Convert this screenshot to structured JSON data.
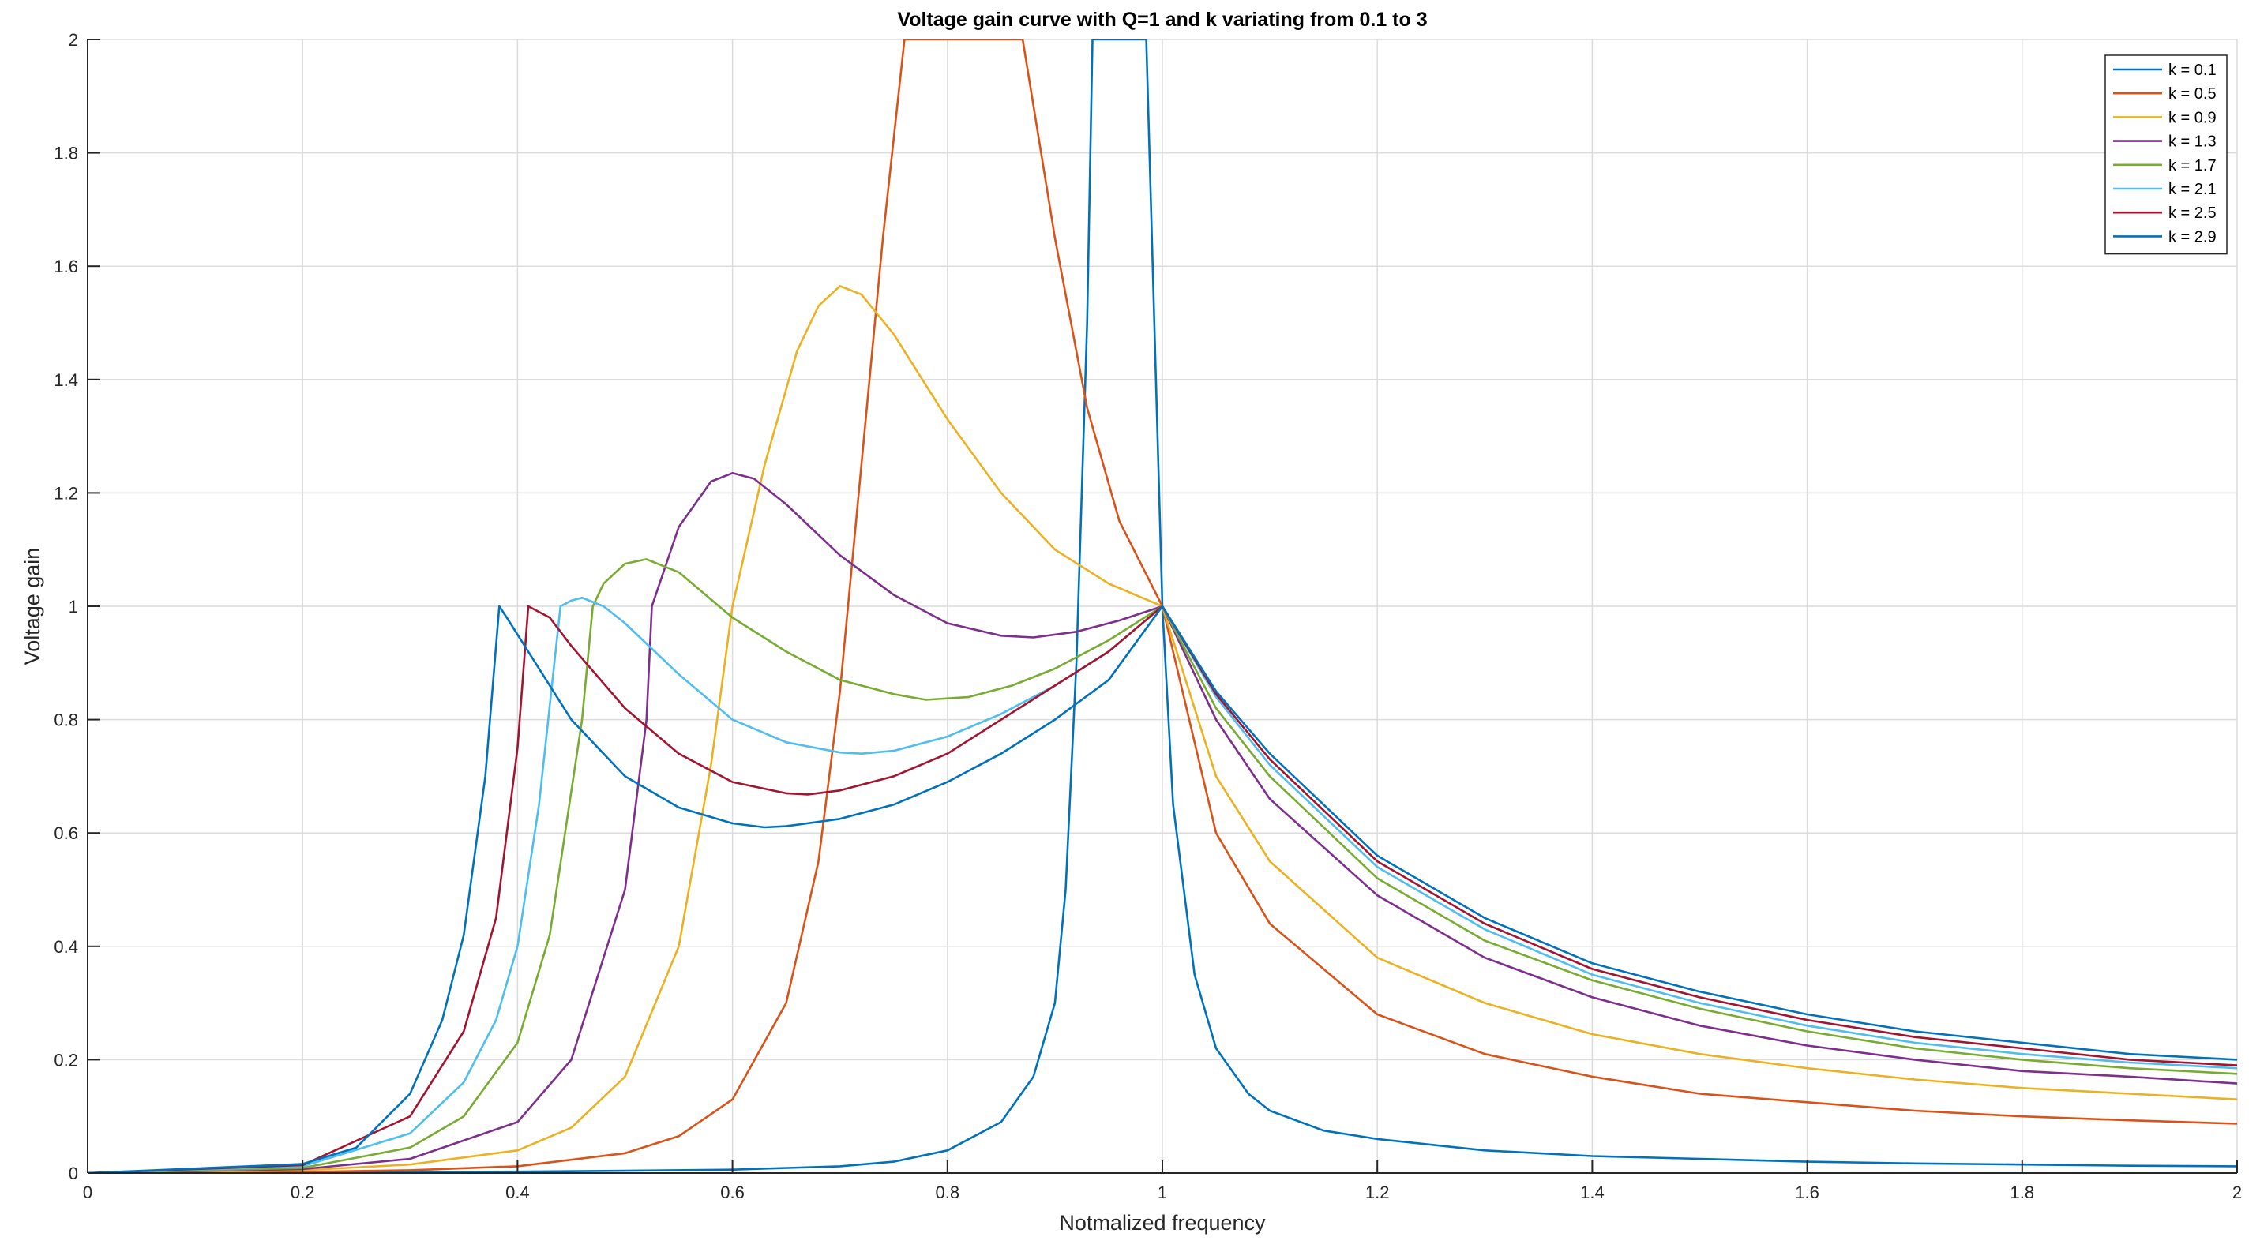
{
  "chart_data": {
    "type": "line",
    "title": "Voltage gain curve with Q=1 and k variating from 0.1 to 3",
    "xlabel": "Notmalized frequency",
    "ylabel": "Voltage gain",
    "xlim": [
      0,
      2
    ],
    "ylim": [
      0,
      2
    ],
    "xticks": [
      0,
      0.2,
      0.4,
      0.6,
      0.8,
      1,
      1.2,
      1.4,
      1.6,
      1.8,
      2
    ],
    "yticks": [
      0,
      0.2,
      0.4,
      0.6,
      0.8,
      1,
      1.2,
      1.4,
      1.6,
      1.8,
      2
    ],
    "xtick_labels": [
      "0",
      "0.2",
      "0.4",
      "0.6",
      "0.8",
      "1",
      "1.2",
      "1.4",
      "1.6",
      "1.8",
      "2"
    ],
    "ytick_labels": [
      "0",
      "0.2",
      "0.4",
      "0.6",
      "0.8",
      "1",
      "1.2",
      "1.4",
      "1.6",
      "1.8",
      "2"
    ],
    "grid": true,
    "legend_position": "top-right",
    "series": [
      {
        "name": "k = 0.1",
        "color": "#0072BD",
        "x": [
          0,
          0.1,
          0.2,
          0.3,
          0.4,
          0.5,
          0.6,
          0.7,
          0.75,
          0.8,
          0.85,
          0.88,
          0.9,
          0.91,
          0.92,
          0.93,
          0.935,
          0.94,
          0.97,
          0.985,
          1.0,
          1.01,
          1.03,
          1.05,
          1.08,
          1.1,
          1.15,
          1.2,
          1.3,
          1.4,
          1.5,
          1.6,
          1.7,
          1.8,
          1.9,
          2.0
        ],
        "y": [
          0,
          0.0003,
          0.0008,
          0.0015,
          0.0025,
          0.004,
          0.006,
          0.012,
          0.02,
          0.04,
          0.09,
          0.17,
          0.3,
          0.5,
          0.9,
          1.5,
          2.0,
          2.0,
          2.0,
          2.0,
          1.0,
          0.65,
          0.35,
          0.22,
          0.14,
          0.11,
          0.075,
          0.06,
          0.04,
          0.03,
          0.025,
          0.02,
          0.017,
          0.015,
          0.013,
          0.012
        ]
      },
      {
        "name": "k = 0.5",
        "color": "#D95319",
        "x": [
          0,
          0.2,
          0.3,
          0.4,
          0.5,
          0.55,
          0.6,
          0.65,
          0.68,
          0.7,
          0.72,
          0.74,
          0.76,
          0.765,
          0.87,
          0.9,
          0.93,
          0.96,
          1.0,
          1.05,
          1.1,
          1.2,
          1.3,
          1.4,
          1.5,
          1.6,
          1.7,
          1.8,
          1.9,
          2.0
        ],
        "y": [
          0,
          0.002,
          0.005,
          0.012,
          0.035,
          0.065,
          0.13,
          0.3,
          0.55,
          0.85,
          1.25,
          1.65,
          2.0,
          2.0,
          2.0,
          1.65,
          1.35,
          1.15,
          1.0,
          0.6,
          0.44,
          0.28,
          0.21,
          0.17,
          0.14,
          0.125,
          0.11,
          0.1,
          0.093,
          0.087
        ]
      },
      {
        "name": "k = 0.9",
        "color": "#EDB120",
        "x": [
          0,
          0.2,
          0.3,
          0.4,
          0.45,
          0.5,
          0.55,
          0.58,
          0.6,
          0.63,
          0.66,
          0.68,
          0.7,
          0.72,
          0.75,
          0.8,
          0.85,
          0.9,
          0.95,
          1.0,
          1.05,
          1.1,
          1.2,
          1.3,
          1.4,
          1.5,
          1.6,
          1.7,
          1.8,
          1.9,
          2.0
        ],
        "y": [
          0,
          0.005,
          0.015,
          0.04,
          0.08,
          0.17,
          0.4,
          0.72,
          1.0,
          1.25,
          1.45,
          1.53,
          1.565,
          1.55,
          1.48,
          1.33,
          1.2,
          1.1,
          1.04,
          1.0,
          0.7,
          0.55,
          0.38,
          0.3,
          0.245,
          0.21,
          0.185,
          0.165,
          0.15,
          0.14,
          0.13
        ]
      },
      {
        "name": "k = 1.3",
        "color": "#7E2F8E",
        "x": [
          0,
          0.2,
          0.3,
          0.4,
          0.45,
          0.5,
          0.52,
          0.525,
          0.55,
          0.58,
          0.6,
          0.62,
          0.65,
          0.7,
          0.75,
          0.8,
          0.85,
          0.88,
          0.92,
          0.96,
          1.0,
          1.05,
          1.1,
          1.2,
          1.3,
          1.4,
          1.5,
          1.6,
          1.7,
          1.8,
          1.9,
          2.0
        ],
        "y": [
          0,
          0.007,
          0.025,
          0.09,
          0.2,
          0.5,
          0.8,
          1.0,
          1.14,
          1.22,
          1.235,
          1.225,
          1.18,
          1.09,
          1.02,
          0.97,
          0.948,
          0.945,
          0.955,
          0.975,
          1.0,
          0.8,
          0.66,
          0.49,
          0.38,
          0.31,
          0.26,
          0.225,
          0.2,
          0.18,
          0.17,
          0.158
        ]
      },
      {
        "name": "k = 1.7",
        "color": "#77AC30",
        "x": [
          0,
          0.2,
          0.3,
          0.35,
          0.4,
          0.43,
          0.46,
          0.47,
          0.48,
          0.5,
          0.52,
          0.55,
          0.6,
          0.65,
          0.7,
          0.75,
          0.78,
          0.82,
          0.86,
          0.9,
          0.95,
          1.0,
          1.05,
          1.1,
          1.2,
          1.3,
          1.4,
          1.5,
          1.6,
          1.7,
          1.8,
          1.9,
          2.0
        ],
        "y": [
          0,
          0.009,
          0.045,
          0.1,
          0.23,
          0.42,
          0.8,
          1.0,
          1.04,
          1.075,
          1.083,
          1.06,
          0.98,
          0.92,
          0.87,
          0.845,
          0.835,
          0.84,
          0.86,
          0.89,
          0.94,
          1.0,
          0.82,
          0.7,
          0.52,
          0.41,
          0.34,
          0.29,
          0.25,
          0.22,
          0.2,
          0.185,
          0.175
        ]
      },
      {
        "name": "k = 2.1",
        "color": "#4DBEEE",
        "x": [
          0,
          0.2,
          0.3,
          0.35,
          0.38,
          0.4,
          0.42,
          0.44,
          0.45,
          0.46,
          0.48,
          0.5,
          0.55,
          0.6,
          0.65,
          0.7,
          0.72,
          0.75,
          0.8,
          0.85,
          0.9,
          0.95,
          1.0,
          1.05,
          1.1,
          1.2,
          1.3,
          1.4,
          1.5,
          1.6,
          1.7,
          1.8,
          1.9,
          2.0
        ],
        "y": [
          0,
          0.012,
          0.07,
          0.16,
          0.27,
          0.4,
          0.65,
          1.0,
          1.01,
          1.015,
          1.0,
          0.97,
          0.88,
          0.8,
          0.76,
          0.742,
          0.74,
          0.745,
          0.77,
          0.81,
          0.86,
          0.92,
          1.0,
          0.84,
          0.72,
          0.54,
          0.43,
          0.35,
          0.3,
          0.26,
          0.23,
          0.21,
          0.195,
          0.185
        ]
      },
      {
        "name": "k = 2.5",
        "color": "#A2142F",
        "x": [
          0,
          0.2,
          0.3,
          0.35,
          0.38,
          0.4,
          0.41,
          0.43,
          0.45,
          0.5,
          0.55,
          0.6,
          0.65,
          0.67,
          0.7,
          0.75,
          0.8,
          0.85,
          0.9,
          0.95,
          1.0,
          1.05,
          1.1,
          1.2,
          1.3,
          1.4,
          1.5,
          1.6,
          1.7,
          1.8,
          1.9,
          2.0
        ],
        "y": [
          0,
          0.014,
          0.1,
          0.25,
          0.45,
          0.75,
          1.0,
          0.98,
          0.93,
          0.82,
          0.74,
          0.69,
          0.67,
          0.668,
          0.675,
          0.7,
          0.74,
          0.8,
          0.86,
          0.92,
          1.0,
          0.845,
          0.73,
          0.55,
          0.44,
          0.36,
          0.31,
          0.27,
          0.24,
          0.22,
          0.2,
          0.19
        ]
      },
      {
        "name": "k = 2.9",
        "color": "#0072BD",
        "x": [
          0,
          0.2,
          0.25,
          0.3,
          0.33,
          0.35,
          0.37,
          0.383,
          0.39,
          0.41,
          0.45,
          0.5,
          0.55,
          0.6,
          0.63,
          0.65,
          0.7,
          0.75,
          0.8,
          0.85,
          0.9,
          0.95,
          1.0,
          1.05,
          1.1,
          1.2,
          1.3,
          1.4,
          1.5,
          1.6,
          1.7,
          1.8,
          1.9,
          2.0
        ],
        "y": [
          0,
          0.016,
          0.045,
          0.14,
          0.27,
          0.42,
          0.7,
          1.0,
          0.98,
          0.92,
          0.8,
          0.7,
          0.645,
          0.617,
          0.61,
          0.612,
          0.625,
          0.65,
          0.69,
          0.74,
          0.8,
          0.87,
          1.0,
          0.85,
          0.74,
          0.56,
          0.45,
          0.37,
          0.32,
          0.28,
          0.25,
          0.23,
          0.21,
          0.2
        ]
      }
    ]
  }
}
